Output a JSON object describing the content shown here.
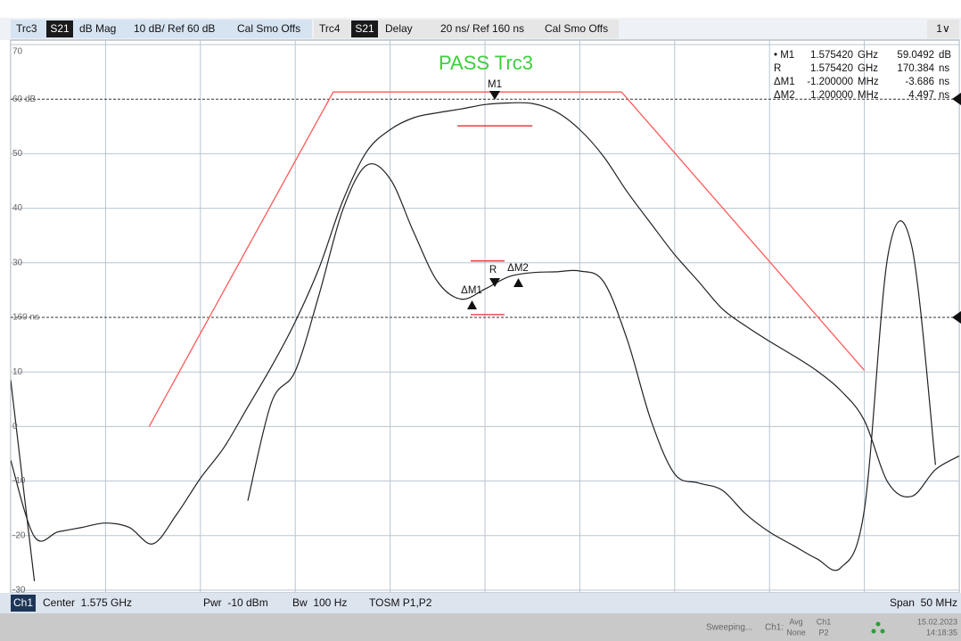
{
  "ui": {
    "tabs": {
      "t1_param": "S21",
      "t1_format": "dB Mag",
      "t1_scale": "10 dB/ Ref 60 dB",
      "t1_cal": "Cal Smo Offs",
      "t2_param": "S21",
      "t2_format": "Delay",
      "t2_scale": "20 ns/ Ref 160 ns",
      "t2_cal": "Cal Smo Offs",
      "window": "1∨"
    },
    "marker_table": {
      "rows": [
        [
          "• M1",
          "1.575420",
          "GHz",
          "59.0492",
          "dB"
        ],
        [
          "R",
          "1.575420",
          "GHz",
          "170.384",
          "ns"
        ],
        [
          "ΔM1",
          "-1.200000",
          "MHz",
          "-3.686",
          "ns"
        ],
        [
          "ΔM2",
          "1.200000",
          "MHz",
          "4.497",
          "ns"
        ]
      ]
    },
    "marker_labels": {
      "m1": "M1",
      "r": "R",
      "dm1": "ΔM1",
      "dm2": "ΔM2"
    },
    "channel_bar": {
      "channel": "Ch1",
      "center": "Center  1.575 GHz",
      "power": "Pwr  -10 dBm",
      "bandwidth": "Bw  100 Hz",
      "cal": "TOSM P1,P2",
      "span": "Span  50 MHz"
    },
    "status_bar": {
      "state": "Sweeping...",
      "channel": "Ch1:",
      "avg_label": "Avg",
      "avg_value": "None",
      "port_label": "Ch1",
      "port_value": "P2",
      "date": "15.02.2023",
      "time": "14:18:35"
    }
  },
  "chart_data": {
    "type": "line",
    "title": "PASS  Trc3",
    "x": [
      1.55,
      1.55125,
      1.5525,
      1.55375,
      1.555,
      1.55625,
      1.5575,
      1.55875,
      1.56,
      1.56125,
      1.5625,
      1.56375,
      1.565,
      1.56625,
      1.5675,
      1.56875,
      1.57,
      1.57125,
      1.5725,
      1.57375,
      1.575,
      1.57625,
      1.5775,
      1.57875,
      1.58,
      1.58125,
      1.5825,
      1.58375,
      1.585,
      1.58625,
      1.5875,
      1.58875,
      1.59,
      1.59125,
      1.5925,
      1.59375,
      1.595,
      1.59625,
      1.5975,
      1.59875,
      1.6
    ],
    "series": [
      {
        "name": "Trc3",
        "color": "#222222",
        "values": [
          -6.2,
          -20.2,
          -19.3,
          -18.5,
          -17.7,
          -18.5,
          -21.5,
          -16.1,
          -9.5,
          -3.8,
          3.6,
          11.0,
          19.2,
          29.0,
          41.3,
          50.3,
          54.4,
          56.6,
          57.5,
          58.2,
          59.0,
          59.3,
          59.2,
          57.7,
          54.4,
          49.5,
          43.0,
          37.2,
          31.5,
          26.6,
          21.6,
          18.4,
          15.6,
          13.0,
          10.2,
          6.6,
          1.1,
          -10.3,
          -12.8,
          -7.9,
          -5.4
        ]
      },
      {
        "name": "Trc4",
        "color": "#222222",
        "axis": "y2",
        "values": [
          137.0,
          63.3,
          null,
          null,
          null,
          null,
          null,
          null,
          null,
          null,
          92.8,
          128.9,
          140.3,
          168.2,
          199.3,
          215.7,
          210.8,
          191.1,
          173.1,
          166.7,
          170.4,
          174.9,
          176.4,
          176.7,
          177.0,
          173.1,
          151.8,
          122.3,
          102.6,
          99.3,
          96.7,
          87.9,
          81.3,
          76.4,
          71.5,
          68.2,
          89.5,
          183.0,
          186.0,
          105.9,
          null
        ]
      }
    ],
    "limit_lines": [
      {
        "color": "#ff5a5a",
        "x": [
          1.5573,
          1.567,
          1.5822,
          1.595
        ],
        "values": [
          0,
          61.3,
          61.3,
          10.3
        ]
      },
      {
        "color": "#e03030",
        "x": [
          1.57355,
          1.5775
        ],
        "values": [
          55.1,
          55.1
        ]
      },
      {
        "color": "#e03030",
        "axis": "y2",
        "x": [
          1.57425,
          1.57603
        ],
        "values": [
          180.7,
          180.7
        ]
      },
      {
        "color": "#e03030",
        "axis": "y2",
        "x": [
          1.57425,
          1.57603
        ],
        "values": [
          161.0,
          161.0
        ]
      }
    ],
    "xlim": [
      1.55,
      1.6
    ],
    "xticks": [
      1.55,
      1.555,
      1.56,
      1.565,
      1.57,
      1.575,
      1.58,
      1.585,
      1.59,
      1.595,
      1.6
    ],
    "ylim": [
      -30,
      70
    ],
    "yticks": [
      70,
      {
        "value": 60,
        "label": "60 dB"
      },
      50,
      40,
      30,
      10,
      0,
      -10,
      -20,
      -30
    ],
    "y2lim": [
      60,
      260
    ],
    "y2ticks": [
      {
        "value": 160,
        "label": "160 ns"
      }
    ],
    "grid": true
  }
}
